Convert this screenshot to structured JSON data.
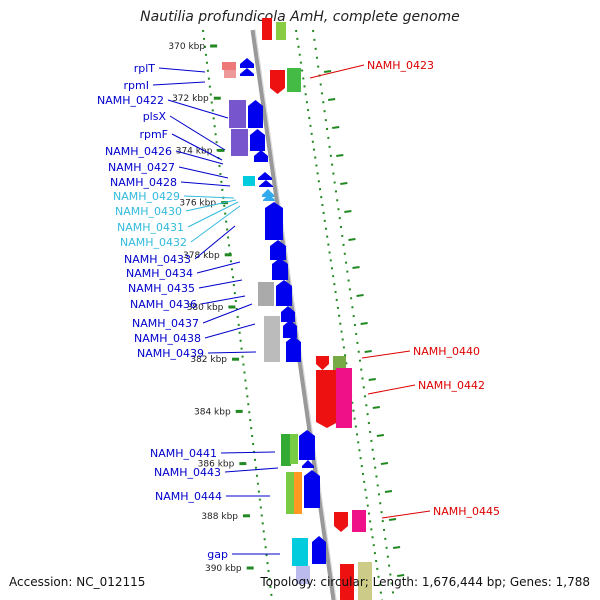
{
  "title": "Nautilia profundicola AmH, complete genome",
  "footer": {
    "accession": "Accession: NC_012115",
    "topology": "Topology: circular; Length: 1,676,444 bp; Genes: 1,788"
  },
  "colors": {
    "left_labels": "#0000cc",
    "cyan_labels": "#33bbdd",
    "right_labels": "#dd0000",
    "tick_green": "#228822",
    "backbone": "#999999"
  },
  "scale_ticks": [
    "370 kbp",
    "372 kbp",
    "374 kbp",
    "376 kbp",
    "378 kbp",
    "380 kbp",
    "382 kbp",
    "384 kbp",
    "386 kbp",
    "388 kbp",
    "390 kbp"
  ],
  "left_genes": [
    {
      "label": "rplT",
      "color": "left"
    },
    {
      "label": "rpmI",
      "color": "left"
    },
    {
      "label": "NAMH_0422",
      "color": "left"
    },
    {
      "label": "plsX",
      "color": "left"
    },
    {
      "label": "rpmF",
      "color": "left"
    },
    {
      "label": "NAMH_0426",
      "color": "left"
    },
    {
      "label": "NAMH_0427",
      "color": "left"
    },
    {
      "label": "NAMH_0428",
      "color": "left"
    },
    {
      "label": "NAMH_0429",
      "color": "cyan"
    },
    {
      "label": "NAMH_0430",
      "color": "cyan"
    },
    {
      "label": "NAMH_0431",
      "color": "cyan"
    },
    {
      "label": "NAMH_0432",
      "color": "cyan"
    },
    {
      "label": "NAMH_0433",
      "color": "left"
    },
    {
      "label": "NAMH_0434",
      "color": "left"
    },
    {
      "label": "NAMH_0435",
      "color": "left"
    },
    {
      "label": "NAMH_0436",
      "color": "left"
    },
    {
      "label": "NAMH_0437",
      "color": "left"
    },
    {
      "label": "NAMH_0438",
      "color": "left"
    },
    {
      "label": "NAMH_0439",
      "color": "left"
    },
    {
      "label": "NAMH_0441",
      "color": "left"
    },
    {
      "label": "NAMH_0443",
      "color": "left"
    },
    {
      "label": "NAMH_0444",
      "color": "left"
    },
    {
      "label": "gap",
      "color": "left"
    }
  ],
  "right_genes": [
    {
      "label": "NAMH_0423"
    },
    {
      "label": "NAMH_0440"
    },
    {
      "label": "NAMH_0442"
    },
    {
      "label": "NAMH_0445"
    }
  ]
}
